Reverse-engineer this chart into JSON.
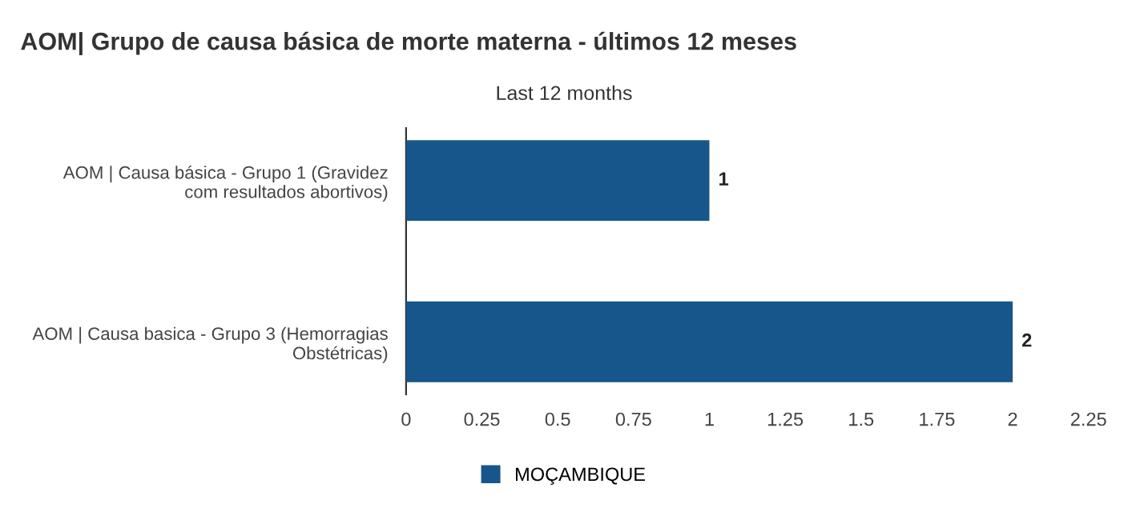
{
  "chart_data": {
    "type": "bar",
    "orientation": "horizontal",
    "title": "AOM| Grupo de causa básica de morte materna - últimos 12 meses",
    "subtitle": "Last 12 months",
    "categories": [
      "AOM | Causa básica - Grupo 1 (Gravidez\ncom resultados abortivos)",
      "AOM | Causa basica - Grupo 3 (Hemorragias\nObstétricas)"
    ],
    "series": [
      {
        "name": "MOÇAMBIQUE",
        "color": "#17568a",
        "values": [
          1,
          2
        ]
      }
    ],
    "xlim": [
      0,
      2.25
    ],
    "xticks": [
      0,
      0.25,
      0.5,
      0.75,
      1,
      1.25,
      1.5,
      1.75,
      2,
      2.25
    ],
    "data_labels": true,
    "legend": "bottom",
    "grid": false
  }
}
